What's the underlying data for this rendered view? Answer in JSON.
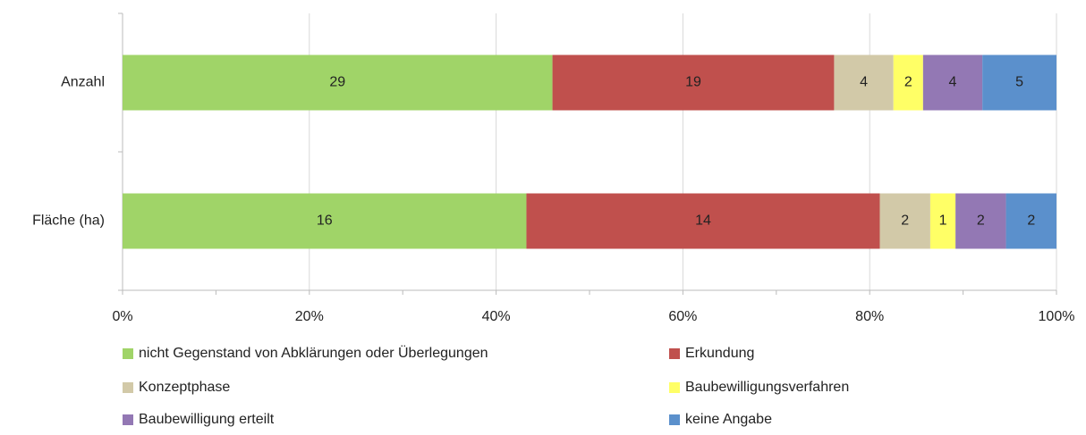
{
  "chart_data": {
    "type": "bar",
    "orientation": "horizontal",
    "stacked": "percent",
    "categories": [
      "Anzahl",
      "Fläche (ha)"
    ],
    "series": [
      {
        "name": "nicht Gegenstand von Abklärungen oder Überlegungen",
        "color": "#a0d468",
        "values": [
          29,
          16
        ]
      },
      {
        "name": "Erkundung",
        "color": "#c0504d",
        "values": [
          19,
          14
        ]
      },
      {
        "name": "Konzeptphase",
        "color": "#d2c9a8",
        "values": [
          4,
          2
        ]
      },
      {
        "name": "Baubewilligungsverfahren",
        "color": "#ffff66",
        "values": [
          2,
          1
        ]
      },
      {
        "name": "Baubewilligung erteilt",
        "color": "#9378b4",
        "values": [
          4,
          2
        ]
      },
      {
        "name": "keine Angabe",
        "color": "#5b90cc",
        "values": [
          5,
          2
        ]
      }
    ],
    "xlim": [
      0,
      100
    ],
    "xticks": [
      {
        "value": 0,
        "label": "0%"
      },
      {
        "value": 20,
        "label": "20%"
      },
      {
        "value": 40,
        "label": "40%"
      },
      {
        "value": 60,
        "label": "60%"
      },
      {
        "value": 80,
        "label": "80%"
      },
      {
        "value": 100,
        "label": "100%"
      }
    ],
    "xminorticks": [
      10,
      30,
      50,
      70,
      90
    ],
    "grid": true,
    "legend": "bottom"
  }
}
